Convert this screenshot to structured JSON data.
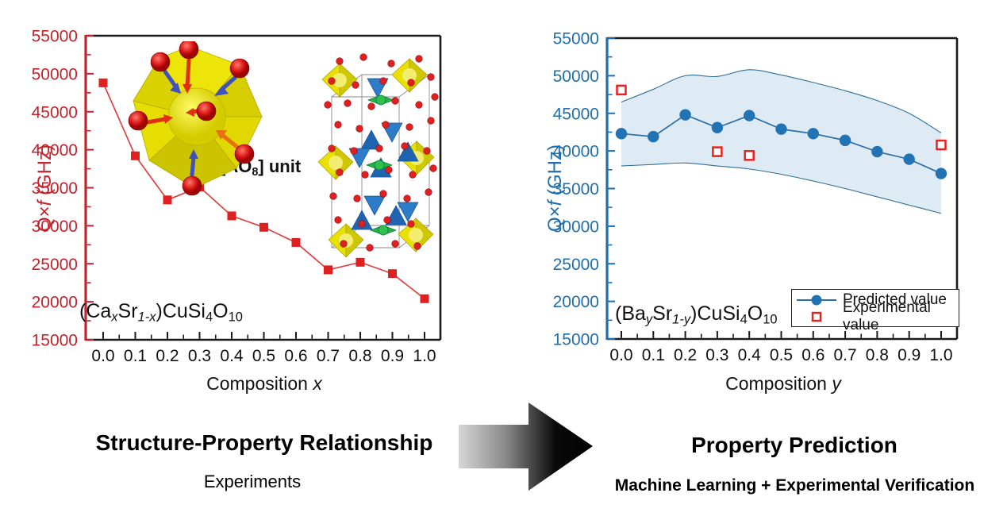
{
  "figure": {
    "captions": {
      "left_title": "Structure-Property Relationship",
      "left_subtitle": "Experiments",
      "right_title": "Property Prediction",
      "right_subtitle": "Machine Learning + Experimental Verification"
    },
    "arrow_icon": "right-block-arrow",
    "background": "#ffffff"
  },
  "chart_data": [
    {
      "type": "line",
      "xlabel": "Composition x",
      "ylabel": "Q×f (GHz)",
      "xlabel_parts": [
        [
          "Composition ",
          "n"
        ],
        [
          "x",
          "i"
        ]
      ],
      "ylabel_parts": [
        [
          "Q×",
          "n"
        ],
        [
          "f",
          "i"
        ],
        [
          " (GHz)",
          "n"
        ]
      ],
      "formula": "(CaxSr1-x)CuSi4O10",
      "formula_parts": [
        [
          "(Ca",
          "n"
        ],
        [
          "x",
          "si"
        ],
        [
          "Sr",
          "n"
        ],
        [
          "1-x",
          "si"
        ],
        [
          ")CuSi",
          "n"
        ],
        [
          "4",
          "s"
        ],
        [
          "O",
          "n"
        ],
        [
          "10",
          "s"
        ]
      ],
      "inset_label": "[AO8] unit",
      "inset_label_parts": [
        [
          "[AO",
          "n"
        ],
        [
          "8",
          "s"
        ],
        [
          "] unit",
          "n"
        ]
      ],
      "axis_color": "#C3232B",
      "tick_label_color_y": "#C3232B",
      "tick_label_color_x": "#111111",
      "xlim": [
        0,
        1
      ],
      "ylim": [
        15000,
        55000
      ],
      "x": [
        0.0,
        0.1,
        0.2,
        0.3,
        0.4,
        0.5,
        0.6,
        0.7,
        0.8,
        0.9,
        1.0
      ],
      "xtick_labels": [
        "0.0",
        "0.1",
        "0.2",
        "0.3",
        "0.4",
        "0.5",
        "0.6",
        "0.7",
        "0.8",
        "0.9",
        "1.0"
      ],
      "ytick_values": [
        15000,
        20000,
        25000,
        30000,
        35000,
        40000,
        45000,
        50000,
        55000
      ],
      "grid": false,
      "series": [
        {
          "name": "Q×f measured",
          "marker": "square",
          "color": "#E01F1F",
          "line_color": "#E04040",
          "values": [
            48800,
            39200,
            33400,
            35100,
            31300,
            29800,
            27800,
            24200,
            25200,
            23700,
            20400
          ]
        }
      ]
    },
    {
      "type": "line",
      "xlabel": "Composition y",
      "ylabel": "Q×f (GHz)",
      "xlabel_parts": [
        [
          "Composition ",
          "n"
        ],
        [
          "y",
          "i"
        ]
      ],
      "ylabel_parts": [
        [
          "Q×",
          "n"
        ],
        [
          "f",
          "i"
        ],
        [
          " (GHz)",
          "n"
        ]
      ],
      "formula": "(BaySr1-y)CuSi4O10",
      "formula_parts": [
        [
          "(Ba",
          "n"
        ],
        [
          "y",
          "si"
        ],
        [
          "Sr",
          "n"
        ],
        [
          "1-y",
          "si"
        ],
        [
          ")CuSi",
          "n"
        ],
        [
          "4",
          "s"
        ],
        [
          "O",
          "n"
        ],
        [
          "10",
          "s"
        ]
      ],
      "axis_color": "#1F6EA9",
      "tick_label_color_y": "#1F6EA9",
      "tick_label_color_x": "#111111",
      "xlim": [
        0,
        1
      ],
      "ylim": [
        15000,
        55000
      ],
      "x": [
        0.0,
        0.1,
        0.2,
        0.3,
        0.4,
        0.5,
        0.6,
        0.7,
        0.8,
        0.9,
        1.0
      ],
      "xtick_labels": [
        "0.0",
        "0.1",
        "0.2",
        "0.3",
        "0.4",
        "0.5",
        "0.6",
        "0.7",
        "0.8",
        "0.9",
        "1.0"
      ],
      "ytick_values": [
        15000,
        20000,
        25000,
        30000,
        35000,
        40000,
        45000,
        50000,
        55000
      ],
      "grid": false,
      "legend_position": "lower right",
      "band": {
        "upper": [
          46500,
          48200,
          50000,
          49900,
          50800,
          50100,
          49100,
          48000,
          46700,
          45000,
          42400
        ],
        "lower": [
          38000,
          38200,
          38400,
          38000,
          37600,
          36900,
          36000,
          35000,
          33900,
          32800,
          31700
        ],
        "fill": "#DFEBF4",
        "edge": "#2E6E99"
      },
      "series": [
        {
          "name": "Predicted value",
          "marker": "circle",
          "color": "#2273B4",
          "line_color": "#2B6FA8",
          "values": [
            42300,
            41900,
            44800,
            43100,
            44700,
            42900,
            42300,
            41400,
            39900,
            38900,
            37000
          ]
        },
        {
          "name": "Experimental value",
          "marker": "open-square",
          "color": "#E8231F",
          "line": false,
          "x": [
            0.0,
            0.3,
            0.4,
            1.0
          ],
          "values": [
            48100,
            39900,
            39400,
            40800
          ]
        }
      ]
    }
  ]
}
